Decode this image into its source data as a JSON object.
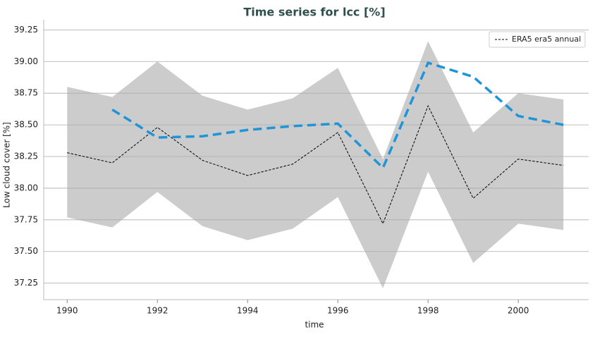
{
  "chart_data": {
    "type": "line",
    "title": "Time series for lcc [%]",
    "xlabel": "time",
    "ylabel": "Low cloud cover [%]",
    "x": [
      1990,
      1991,
      1992,
      1993,
      1994,
      1995,
      1996,
      1997,
      1998,
      1999,
      2000,
      2001
    ],
    "xlim": [
      1989.48,
      2001.56
    ],
    "xticks": [
      1990,
      1992,
      1994,
      1996,
      1998,
      2000
    ],
    "ylim": [
      37.12,
      39.33
    ],
    "yticks": [
      37.25,
      {
        "value": 37.5,
        "label": "37.50"
      },
      37.75,
      {
        "value": 38.0,
        "label": "38.00"
      },
      38.25,
      {
        "value": 38.5,
        "label": "38.50"
      },
      38.75,
      {
        "value": 39.0,
        "label": "39.00"
      },
      39.25
    ],
    "grid": true,
    "legend": "upper right",
    "band": {
      "color": "#cccccc",
      "upper": [
        38.8,
        38.72,
        39.0,
        38.73,
        38.62,
        38.71,
        38.95,
        38.23,
        39.16,
        38.44,
        38.75,
        38.7
      ],
      "lower": [
        37.77,
        37.69,
        37.97,
        37.7,
        37.59,
        37.68,
        37.93,
        37.21,
        38.13,
        37.41,
        37.72,
        37.67
      ]
    },
    "series": [
      {
        "name": "ERA5 era5 annual",
        "color": "#000000",
        "linestyle": "dashed",
        "linewidth": 1,
        "values": [
          38.28,
          38.2,
          38.48,
          38.22,
          38.1,
          38.19,
          38.44,
          37.72,
          38.65,
          37.92,
          38.23,
          38.18
        ]
      },
      {
        "color": "#1f95d8",
        "linestyle": "dashed",
        "linewidth": 3.5,
        "values": [
          null,
          38.62,
          38.4,
          38.41,
          38.46,
          38.49,
          38.51,
          38.16,
          38.99,
          38.88,
          38.57,
          38.5
        ]
      }
    ]
  }
}
